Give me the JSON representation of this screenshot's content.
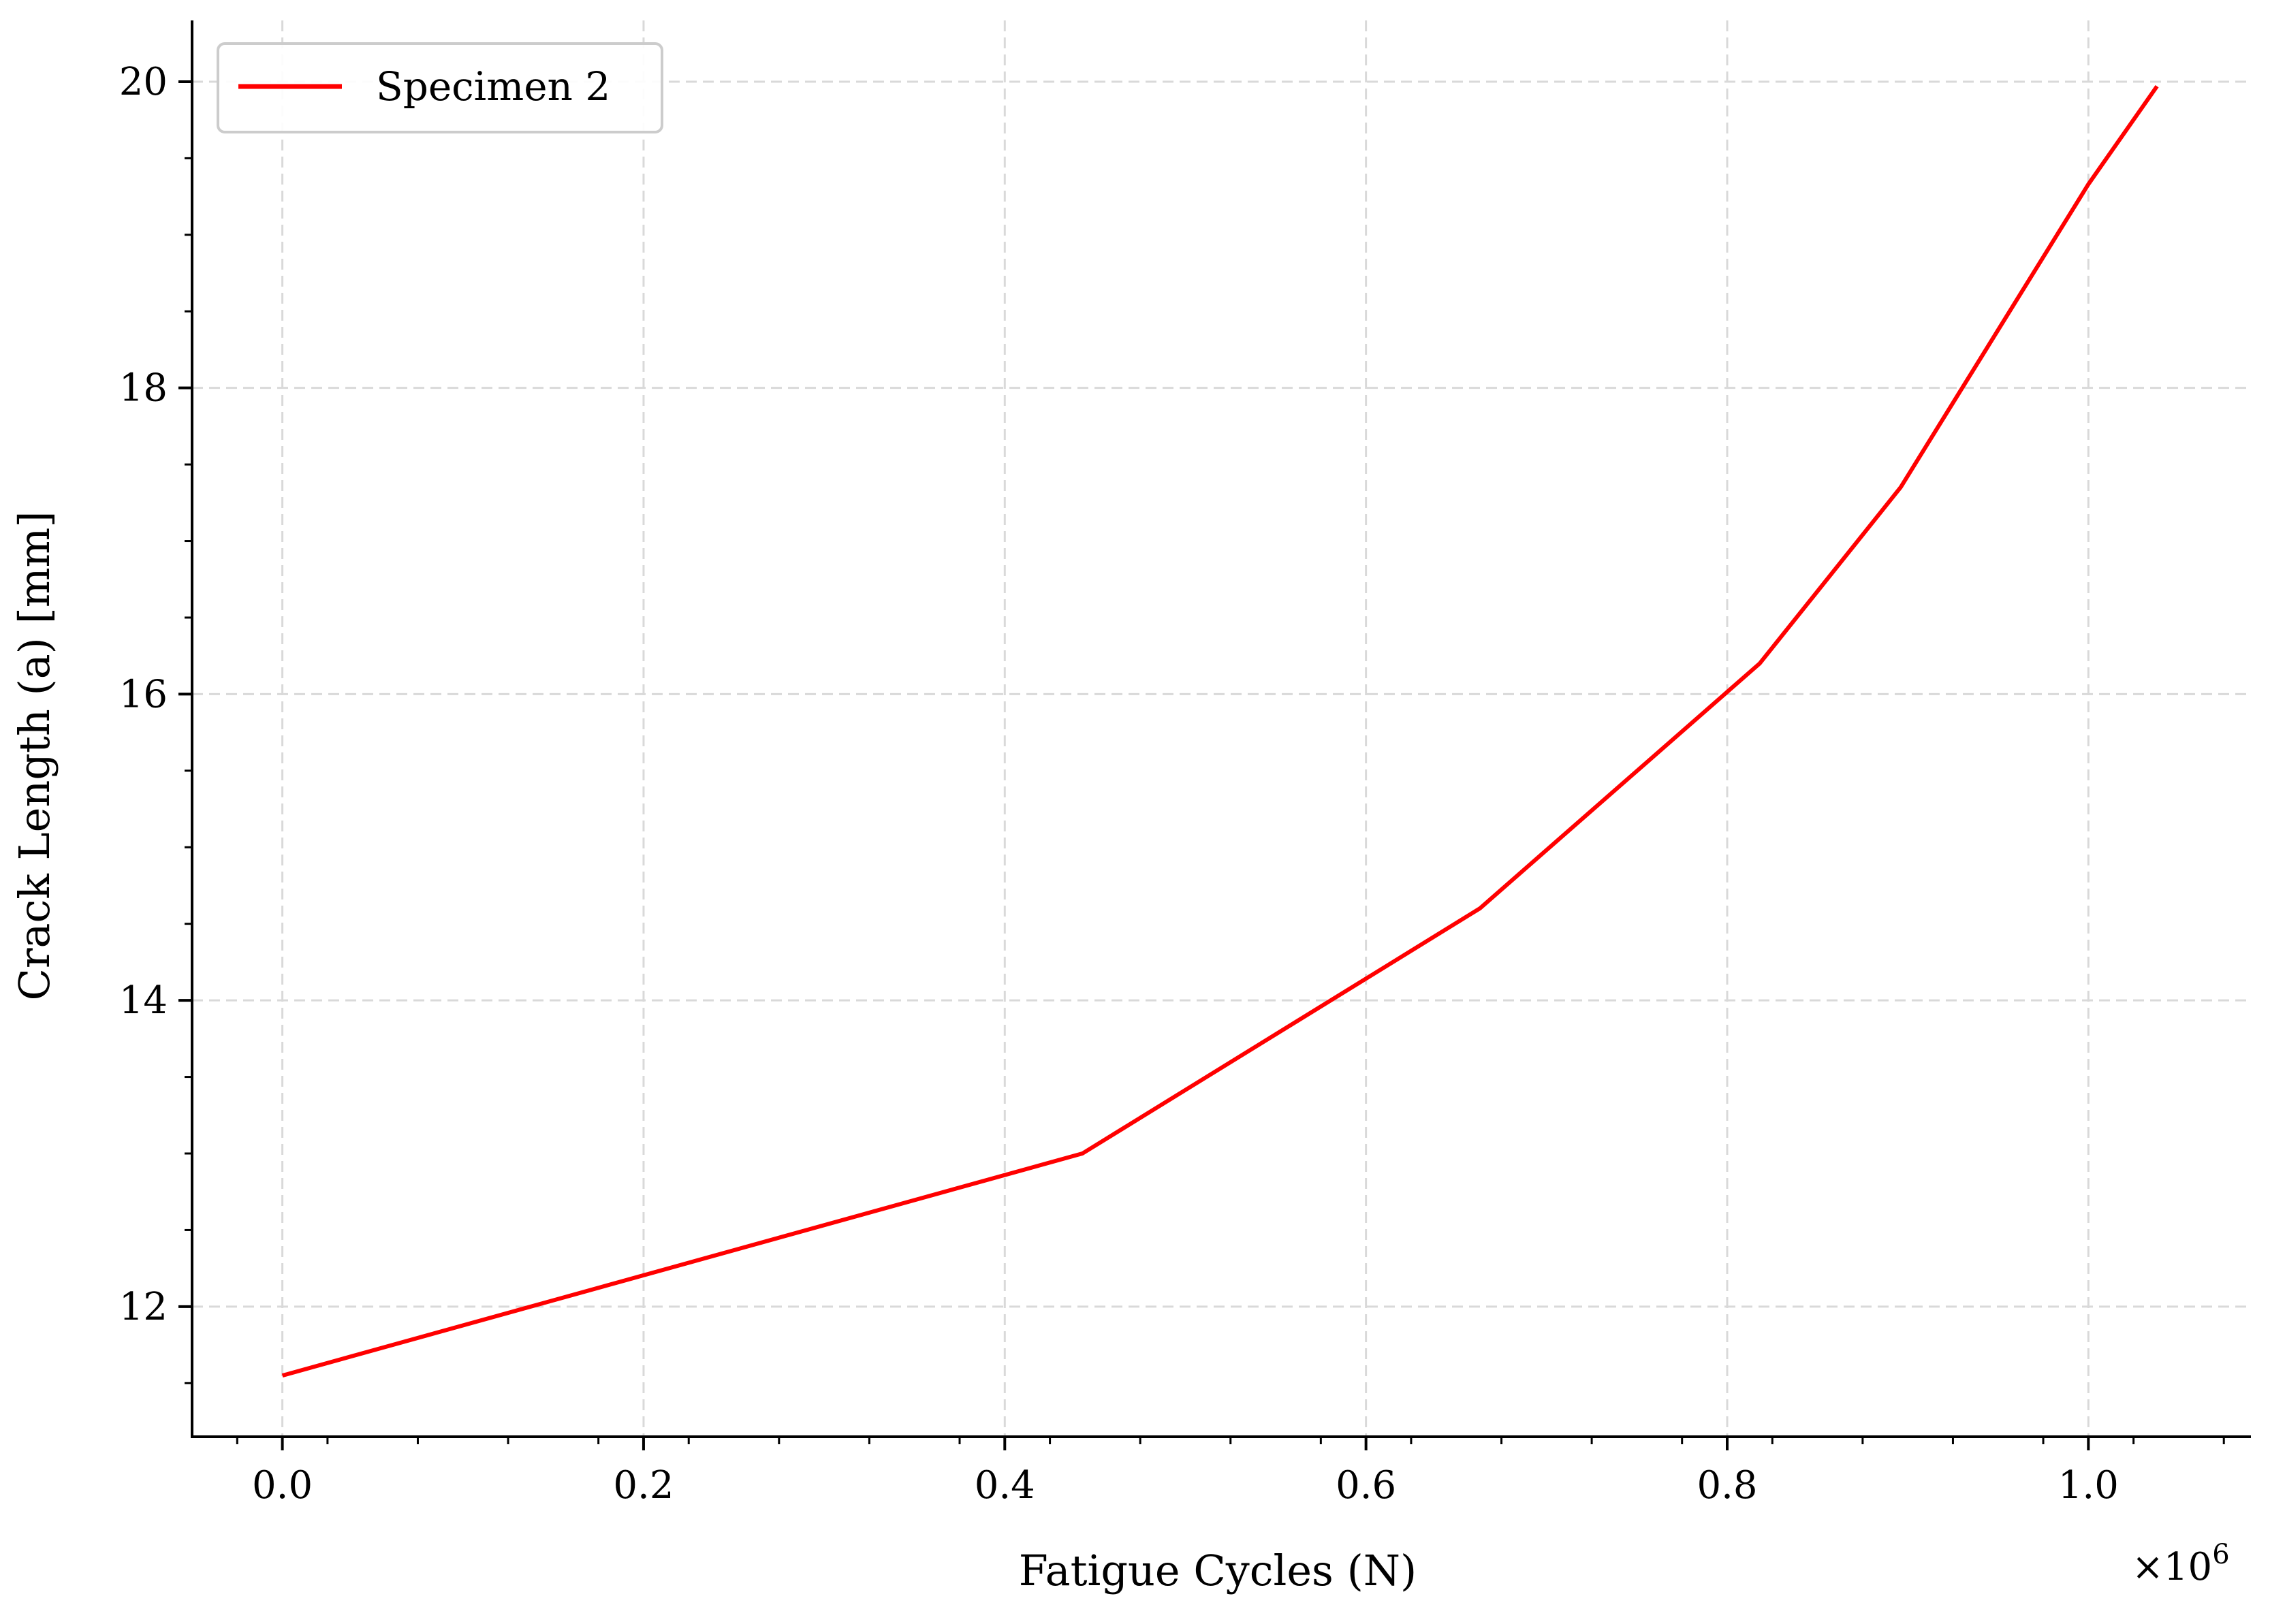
{
  "chart_data": {
    "type": "line",
    "xlabel": "Fatigue Cycles (N)",
    "ylabel": "Crack Length (a) [mm]",
    "x_scale_note": {
      "prefix": "×10",
      "exponent": "6"
    },
    "xlim": [
      -0.05,
      1.09
    ],
    "ylim": [
      11.15,
      20.4
    ],
    "x_ticks": [
      0.0,
      0.2,
      0.4,
      0.6,
      0.8,
      1.0
    ],
    "x_tick_labels": [
      "0.0",
      "0.2",
      "0.4",
      "0.6",
      "0.8",
      "1.0"
    ],
    "y_ticks": [
      12,
      14,
      16,
      18,
      20
    ],
    "y_tick_labels": [
      "12",
      "14",
      "16",
      "18",
      "20"
    ],
    "grid": true,
    "legend_position": "top-left",
    "series": [
      {
        "name": "Specimen 2",
        "color": "#ff0000",
        "x": [
          0.0,
          0.443,
          0.663,
          0.818,
          0.896,
          1.0,
          1.038
        ],
        "y": [
          11.55,
          13.0,
          14.6,
          16.2,
          17.35,
          19.33,
          19.97
        ]
      }
    ]
  }
}
